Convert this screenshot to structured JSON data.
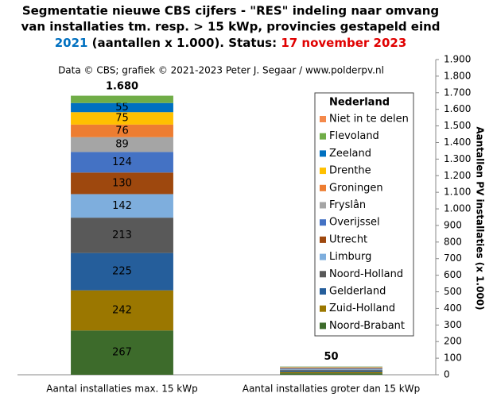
{
  "chart_data": {
    "type": "stacked_bar",
    "title": {
      "line1": "Segmentatie nieuwe CBS cijfers - \"RES\" indeling  naar omvang",
      "line2": "van installaties  tm. resp. > 15 kWp, provincies  gestapeld eind",
      "line3": [
        "2021",
        " (aantallen x 1.000). Status: ",
        "17 november 2023"
      ]
    },
    "subtitle": "Data © CBS; grafiek © 2021-2023  Peter J. Segaar / www.polderpv.nl",
    "y_axis_label": "Aantallen PV installaties (x 1.000)",
    "legend_title": "Nederland",
    "categories": [
      "Aantal installaties max. 15 kWp",
      "Aantal installaties groter dan 15 kWp"
    ],
    "series": [
      {
        "name": "Noord-Brabant",
        "color": "#3d6b2b",
        "values": [
          267,
          9
        ]
      },
      {
        "name": "Zuid-Holland",
        "color": "#9b7700",
        "values": [
          242,
          8
        ]
      },
      {
        "name": "Gelderland",
        "color": "#255e9b",
        "values": [
          225,
          8
        ]
      },
      {
        "name": "Noord-Holland",
        "color": "#595959",
        "values": [
          213,
          5
        ]
      },
      {
        "name": "Limburg",
        "color": "#7eaedd",
        "values": [
          142,
          4
        ]
      },
      {
        "name": "Utrecht",
        "color": "#9e480e",
        "values": [
          130,
          3
        ]
      },
      {
        "name": "Overijssel",
        "color": "#4472c4",
        "values": [
          124,
          4
        ]
      },
      {
        "name": "Fryslân",
        "color": "#a5a5a5",
        "values": [
          89,
          3
        ]
      },
      {
        "name": "Groningen",
        "color": "#ed7d31",
        "values": [
          76,
          2
        ]
      },
      {
        "name": "Drenthe",
        "color": "#ffc000",
        "values": [
          75,
          2
        ]
      },
      {
        "name": "Zeeland",
        "color": "#0070c0",
        "values": [
          55,
          1
        ]
      },
      {
        "name": "Flevoland",
        "color": "#70ad47",
        "values": [
          44,
          1
        ]
      },
      {
        "name": "Niet in te delen",
        "color": "#f4894b",
        "values": [
          0,
          0
        ]
      }
    ],
    "totals": [
      1680,
      50
    ],
    "totals_value_labels": [
      "1.680",
      "50"
    ],
    "ylim": [
      0,
      1900
    ],
    "yticks": [
      0,
      100,
      200,
      300,
      400,
      500,
      600,
      700,
      800,
      900,
      {
        "value": 1000,
        "label": "1.000"
      },
      {
        "value": 1100,
        "label": "1.100"
      },
      {
        "value": 1200,
        "label": "1.200"
      },
      {
        "value": 1300,
        "label": "1.300"
      },
      {
        "value": 1400,
        "label": "1.400"
      },
      {
        "value": 1500,
        "label": "1.500"
      },
      {
        "value": 1600,
        "label": "1.600"
      },
      {
        "value": 1700,
        "label": "1.700"
      },
      {
        "value": 1800,
        "label": "1.800"
      },
      {
        "value": 1900,
        "label": "1.900"
      }
    ],
    "y_axis_side": "right",
    "legend_position": "right"
  }
}
